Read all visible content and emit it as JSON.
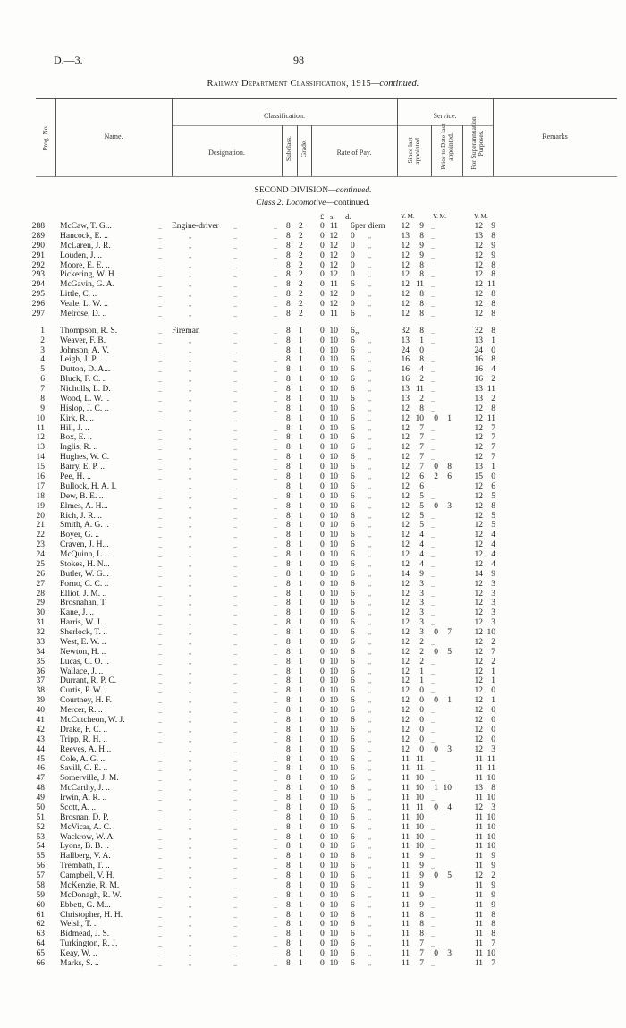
{
  "page_ref": "D.—3.",
  "page_number": "98",
  "title": "Railway Department Classification, 1915",
  "title_suffix": "—continued.",
  "headers": {
    "prog_no": "Prog. No.",
    "name": "Name.",
    "classification": "Classification.",
    "designation": "Designation.",
    "subclass": "Subclass.",
    "grade": "Grade.",
    "rate": "Rate of Pay.",
    "service": "Service.",
    "since": "Since last appointed.",
    "prior": "Prior to Date last appointed.",
    "super": "For Superannuation Purposes.",
    "remarks": "Remarks"
  },
  "section": {
    "division": "SECOND DIVISION",
    "division_suffix": "—continued.",
    "class_label": "Class 2: Locomotive",
    "class_suffix": "—continued."
  },
  "units": {
    "pounds": "£",
    "shillings": "s.",
    "pence": "d.",
    "since": "Y.  M.",
    "prior": "Y.  M.",
    "super": "Y.  M."
  },
  "ditto": "„",
  "filler": "..",
  "groups": [
    {
      "designation": "Engine-driver",
      "subclass": "8",
      "grade": "2",
      "rate_unit": "per diem",
      "rows": [
        [
          "288",
          "McCaw, T. G...",
          "0 11 6",
          "12 9",
          "",
          "12 9"
        ],
        [
          "289",
          "Hancock, E. ..",
          "0 12 0",
          "13 8",
          "",
          "13 8"
        ],
        [
          "290",
          "McLaren, J. R.",
          "0 12 0",
          "12 9",
          "",
          "12 9"
        ],
        [
          "291",
          "Louden, J.   ..",
          "0 12 0",
          "12 9",
          "",
          "12 9"
        ],
        [
          "292",
          "Moore, E. E. ..",
          "0 12 0",
          "12 8",
          "",
          "12 8"
        ],
        [
          "293",
          "Pickering, W. H.",
          "0 12 0",
          "12 8",
          "",
          "12 8"
        ],
        [
          "294",
          "McGavin, G. A.",
          "0 11 6",
          "12 11",
          "",
          "12 11"
        ],
        [
          "295",
          "Little, C.    ..",
          "0 12 0",
          "12 8",
          "",
          "12 8"
        ],
        [
          "296",
          "Veale, L. W. ..",
          "0 12 0",
          "12 8",
          "",
          "12 8"
        ],
        [
          "297",
          "Melrose, D.  ..",
          "0 11 6",
          "12 8",
          "",
          "12 8"
        ]
      ]
    },
    {
      "designation": "Fireman",
      "subclass": "8",
      "grade": "1",
      "rate_unit": "„",
      "rows": [
        [
          "1",
          "Thompson, R. S.",
          "0 10 6",
          "32 8",
          "",
          "32 8"
        ],
        [
          "2",
          "Weaver, F. B.",
          "0 10 6",
          "13 1",
          "",
          "13 1"
        ],
        [
          "3",
          "Johnson, A. V.",
          "0 10 6",
          "24 0",
          "",
          "24 0"
        ],
        [
          "4",
          "Leigh, J. P.  ..",
          "0 10 6",
          "16 8",
          "",
          "16 8"
        ],
        [
          "5",
          "Dutton, D. A...",
          "0 10 6",
          "16 4",
          "",
          "16 4"
        ],
        [
          "6",
          "Bluck, F. C.  ..",
          "0 10 6",
          "16 2",
          "",
          "16 2"
        ],
        [
          "7",
          "Nicholls, L. D.",
          "0 10 6",
          "13 11",
          "",
          "13 11"
        ],
        [
          "8",
          "Wood, L. W. ..",
          "0 10 6",
          "13 2",
          "",
          "13 2"
        ],
        [
          "9",
          "Hislop, J. C. ..",
          "0 10 6",
          "12 8",
          "",
          "12 8"
        ],
        [
          "10",
          "Kirk, R.       ..",
          "0 10 6",
          "12 10",
          "0 1",
          "12 11"
        ],
        [
          "11",
          "Hill, J.        ..",
          "0 10 6",
          "12 7",
          "",
          "12 7"
        ],
        [
          "12",
          "Box, E.        ..",
          "0 10 6",
          "12 7",
          "",
          "12 7"
        ],
        [
          "13",
          "Inglis, R.     ..",
          "0 10 6",
          "12 7",
          "",
          "12 7"
        ],
        [
          "14",
          "Hughes, W. C.",
          "0 10 6",
          "12 7",
          "",
          "12 7"
        ],
        [
          "15",
          "Barry, E. P. ..",
          "0 10 6",
          "12 7",
          "0 8",
          "13 1"
        ],
        [
          "16",
          "Pee, H.        ..",
          "0 10 6",
          "12 6",
          "2 6",
          "15 0"
        ],
        [
          "17",
          "Bullock, H. A. I.",
          "0 10 6",
          "12 6",
          "",
          "12 6"
        ],
        [
          "18",
          "Dew, B. E.   ..",
          "0 10 6",
          "12 5",
          "",
          "12 5"
        ],
        [
          "19",
          "Elmes, A. H...",
          "0 10 6",
          "12 5",
          "0 3",
          "12 8"
        ],
        [
          "20",
          "Rich, J. R.   ..",
          "0 10 6",
          "12 5",
          "",
          "12 5"
        ],
        [
          "21",
          "Smith, A. G. ..",
          "0 10 6",
          "12 5",
          "",
          "12 5"
        ],
        [
          "22",
          "Boyer, G.     ..",
          "0 10 6",
          "12 4",
          "",
          "12 4"
        ],
        [
          "23",
          "Craven, J. H...",
          "0 10 6",
          "12 4",
          "",
          "12 4"
        ],
        [
          "24",
          "McQuinn, L. ..",
          "0 10 6",
          "12 4",
          "",
          "12 4"
        ],
        [
          "25",
          "Stokes, H. N...",
          "0 10 6",
          "12 4",
          "",
          "12 4"
        ],
        [
          "26",
          "Butler, W. G...",
          "0 10 6",
          "14 9",
          "",
          "14 9"
        ],
        [
          "27",
          "Forno, C. C.  ..",
          "0 10 6",
          "12 3",
          "",
          "12 3"
        ],
        [
          "28",
          "Elliot, J. M.  ..",
          "0 10 6",
          "12 3",
          "",
          "12 3"
        ],
        [
          "29",
          "Brosnahan, T.",
          "0 10 6",
          "12 3",
          "",
          "12 3"
        ],
        [
          "30",
          "Kane, J.       ..",
          "0 10 6",
          "12 3",
          "",
          "12 3"
        ],
        [
          "31",
          "Harris, W. J...",
          "0 10 6",
          "12 3",
          "",
          "12 3"
        ],
        [
          "32",
          "Sherlock, T.  ..",
          "0 10 6",
          "12 3",
          "0 7",
          "12 10"
        ],
        [
          "33",
          "West, E. W.  ..",
          "0 10 6",
          "12 2",
          "",
          "12 2"
        ],
        [
          "34",
          "Newton, H.   ..",
          "0 10 6",
          "12 2",
          "0 5",
          "12 7"
        ],
        [
          "35",
          "Lucas, C. O. ..",
          "0 10 6",
          "12 2",
          "",
          "12 2"
        ],
        [
          "36",
          "Wallace, J.   ..",
          "0 10 6",
          "12 1",
          "",
          "12 1"
        ],
        [
          "37",
          "Durrant, R. P. C.",
          "0 10 6",
          "12 1",
          "",
          "12 1"
        ],
        [
          "38",
          "Curtis, P. W...",
          "0 10 6",
          "12 0",
          "",
          "12 0"
        ],
        [
          "39",
          "Courtney, H. F.",
          "0 10 6",
          "12 0",
          "0 1",
          "12 1"
        ],
        [
          "40",
          "Mercer, R.    ..",
          "0 10 6",
          "12 0",
          "",
          "12 0"
        ],
        [
          "41",
          "McCutcheon, W. J.",
          "0 10 6",
          "12 0",
          "",
          "12 0"
        ],
        [
          "42",
          "Drake, F. C.  ..",
          "0 10 6",
          "12 0",
          "",
          "12 0"
        ],
        [
          "43",
          "Tripp, R. H.  ..",
          "0 10 6",
          "12 0",
          "",
          "12 0"
        ],
        [
          "44",
          "Reeves, A. H...",
          "0 10 6",
          "12 0",
          "0 3",
          "12 3"
        ],
        [
          "45",
          "Cole, A. G.    ..",
          "0 10 6",
          "11 11",
          "",
          "11 11"
        ],
        [
          "46",
          "Savill, C. E.  ..",
          "0 10 6",
          "11 11",
          "",
          "11 11"
        ],
        [
          "47",
          "Somerville, J. M.",
          "0 10 6",
          "11 10",
          "",
          "11 10"
        ],
        [
          "48",
          "McCarthy, J. ..",
          "0 10 6",
          "11 10",
          "1 10",
          "13 8"
        ],
        [
          "49",
          "Irwin, A. R.  ..",
          "0 10 6",
          "11 10",
          "",
          "11 10"
        ],
        [
          "50",
          "Scott, A.       ..",
          "0 10 6",
          "11 11",
          "0 4",
          "12 3"
        ],
        [
          "51",
          "Brosnan, D. P.",
          "0 10 6",
          "11 10",
          "",
          "11 10"
        ],
        [
          "52",
          "McVicar, A. C.",
          "0 10 6",
          "11 10",
          "",
          "11 10"
        ],
        [
          "53",
          "Wackrow, W. A.",
          "0 10 6",
          "11 10",
          "",
          "11 10"
        ],
        [
          "54",
          "Lyons, B. B.  ..",
          "0 10 6",
          "11 10",
          "",
          "11 10"
        ],
        [
          "55",
          "Hallberg, V. A.",
          "0 10 6",
          "11 9",
          "",
          "11 9"
        ],
        [
          "56",
          "Trembath, T. ..",
          "0 10 6",
          "11 9",
          "",
          "11 9"
        ],
        [
          "57",
          "Campbell, V. H.",
          "0 10 6",
          "11 9",
          "0 5",
          "12 2"
        ],
        [
          "58",
          "McKenzie, R. M.",
          "0 10 6",
          "11 9",
          "",
          "11 9"
        ],
        [
          "59",
          "McDonagh, R. W.",
          "0 10 6",
          "11 9",
          "",
          "11 9"
        ],
        [
          "60",
          "Ebbett, G. M...",
          "0 10 6",
          "11 9",
          "",
          "11 9"
        ],
        [
          "61",
          "Christopher, H. H.",
          "0 10 6",
          "11 8",
          "",
          "11 8"
        ],
        [
          "62",
          "Welsh, T.      ..",
          "0 10 6",
          "11 8",
          "",
          "11 8"
        ],
        [
          "63",
          "Bidmead, J. S.",
          "0 10 6",
          "11 8",
          "",
          "11 8"
        ],
        [
          "64",
          "Turkington, R. J.",
          "0 10 6",
          "11 7",
          "",
          "11 7"
        ],
        [
          "65",
          "Keay, W.       ..",
          "0 10 6",
          "11 7",
          "0 3",
          "11 10"
        ],
        [
          "66",
          "Marks, S.      ..",
          "0 10 6",
          "11 7",
          "",
          "11 7"
        ]
      ]
    }
  ]
}
